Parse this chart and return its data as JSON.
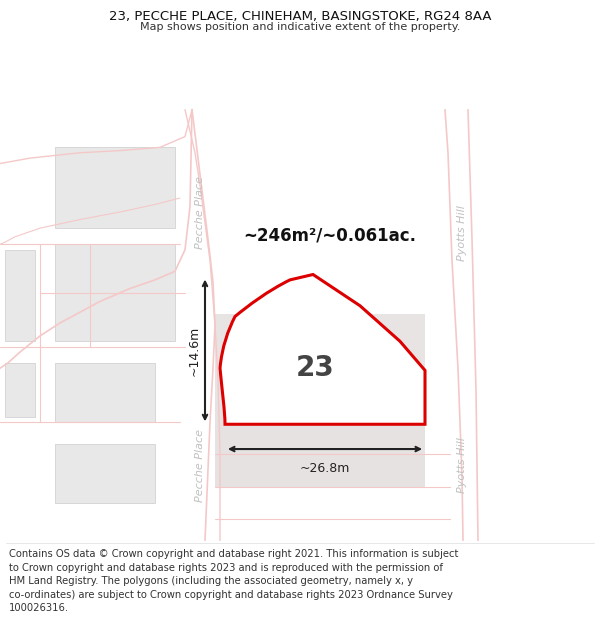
{
  "title_line1": "23, PECCHE PLACE, CHINEHAM, BASINGSTOKE, RG24 8AA",
  "title_line2": "Map shows position and indicative extent of the property.",
  "footer_text": "Contains OS data © Crown copyright and database right 2021. This information is subject\nto Crown copyright and database rights 2023 and is reproduced with the permission of\nHM Land Registry. The polygons (including the associated geometry, namely x, y\nco-ordinates) are subject to Crown copyright and database rights 2023 Ordnance Survey\n100026316.",
  "area_label": "~246m²/~0.061ac.",
  "width_label": "~26.8m",
  "height_label": "~14.6m",
  "number_label": "23",
  "map_bg": "#ffffff",
  "building_color": "#e8e8e8",
  "building_edge": "#cccccc",
  "road_color": "#f5c8c8",
  "plot_border_color": "#dd0000",
  "plot_fill": "#ffffff",
  "plot_shadow_color": "#e0dede",
  "dimension_color": "#222222",
  "road_label_color": "#bbbbbb",
  "title_fontsize": 9.5,
  "footer_fontsize": 7.2,
  "pecche_place_label": "Pecche Place",
  "pyotts_hill_label": "Pyotts Hill"
}
